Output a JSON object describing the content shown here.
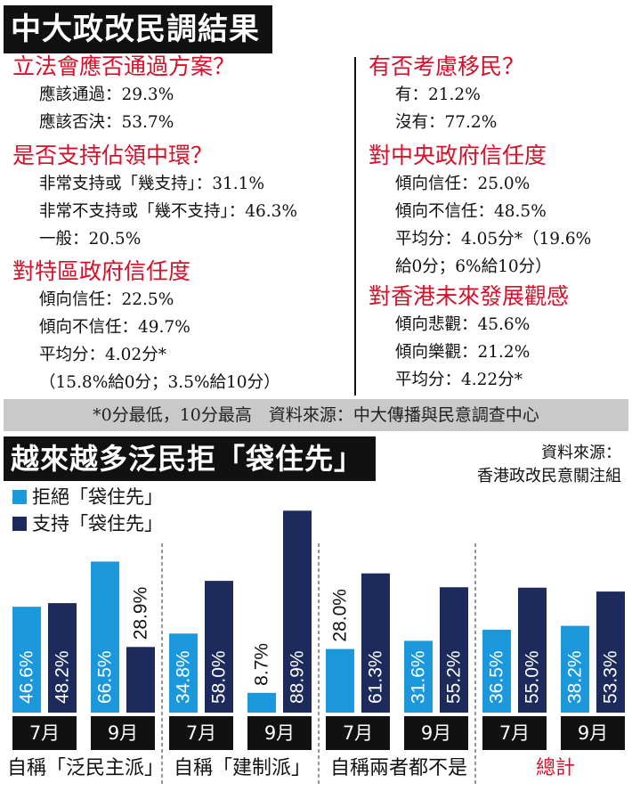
{
  "top_title": "中大政改民調結果",
  "left_questions": [
    {
      "title": "立法會應否通過方案？",
      "answers": [
        "應該通過：29.3%",
        "應該否決：53.7%"
      ]
    },
    {
      "title": "是否支持佔領中環？",
      "answers": [
        "非常支持或「幾支持」：31.1%",
        "非常不支持或「幾不支持」：46.3%",
        "一般：20.5%"
      ]
    },
    {
      "title": "對特區政府信任度",
      "answers": [
        "傾向信任：22.5%",
        "傾向不信任：49.7%",
        "平均分：4.02分*",
        "（15.8%給0分；3.5%給10分）"
      ]
    }
  ],
  "right_questions": [
    {
      "title": "有否考慮移民？",
      "answers": [
        "有：21.2%",
        "沒有：77.2%"
      ]
    },
    {
      "title": "對中央政府信任度",
      "answers": [
        "傾向信任：25.0%",
        "傾向不信任：48.5%",
        "平均分：4.05分*（19.6%",
        "給0分；6%給10分）"
      ]
    },
    {
      "title": "對香港未來發展觀感",
      "answers": [
        "傾向悲觀：45.6%",
        "傾向樂觀：21.2%",
        "平均分：4.22分*"
      ]
    }
  ],
  "note": "*0分最低，10分最高　資料來源：中大傳播與民意調查中心",
  "chart_title": "越來越多泛民拒「袋住先」",
  "chart_source_line1": "資料來源：",
  "chart_source_line2": "香港政改民意關注組",
  "colors": {
    "reject": "#1b97dc",
    "support": "#1c2b5c",
    "title_red": "#d7102a"
  },
  "chart_data": {
    "type": "bar",
    "series": [
      {
        "name": "拒絕「袋住先」",
        "color": "#1b97dc"
      },
      {
        "name": "支持「袋住先」",
        "color": "#1c2b5c"
      }
    ],
    "groups": [
      {
        "label": "自稱「泛民主派」",
        "label_color": "#111111",
        "months": [
          {
            "month": "7月",
            "values": [
              46.6,
              48.2
            ]
          },
          {
            "month": "9月",
            "values": [
              66.5,
              28.9
            ]
          }
        ]
      },
      {
        "label": "自稱「建制派」",
        "label_color": "#111111",
        "months": [
          {
            "month": "7月",
            "values": [
              34.8,
              58.0
            ]
          },
          {
            "month": "9月",
            "values": [
              8.7,
              88.9
            ]
          }
        ]
      },
      {
        "label": "自稱兩者都不是",
        "label_color": "#111111",
        "months": [
          {
            "month": "7月",
            "values": [
              28.0,
              61.3
            ]
          },
          {
            "month": "9月",
            "values": [
              31.6,
              55.2
            ]
          }
        ]
      },
      {
        "label": "總計",
        "label_color": "#d7102a",
        "months": [
          {
            "month": "7月",
            "values": [
              36.5,
              55.0
            ]
          },
          {
            "month": "9月",
            "values": [
              38.2,
              53.3
            ]
          }
        ]
      }
    ],
    "ylim": [
      0,
      100
    ]
  }
}
